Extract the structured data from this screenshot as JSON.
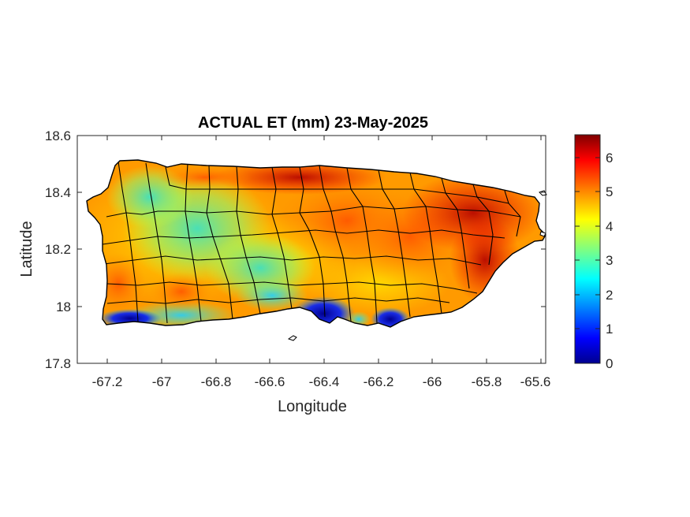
{
  "title": "ACTUAL ET (mm) 23-May-2025",
  "xlabel": "Longitude",
  "ylabel": "Latitude",
  "x_ticks": [
    "-67.2",
    "-67",
    "-66.8",
    "-66.6",
    "-66.4",
    "-66.2",
    "-66",
    "-65.8",
    "-65.6"
  ],
  "y_ticks": [
    "18.6",
    "18.4",
    "18.2",
    "18",
    "17.8"
  ],
  "colorbar_ticks": [
    "6",
    "5",
    "4",
    "3",
    "2",
    "1",
    "0"
  ],
  "map": {
    "region": "Puerto Rico",
    "variable": "Actual evapotranspiration",
    "units": "mm",
    "date": "23-May-2025",
    "colormap": "jet",
    "color_range": [
      0,
      6.6
    ],
    "x_range": [
      -67.3,
      -65.6
    ],
    "y_range": [
      17.8,
      18.6
    ],
    "boundaries": "municipality outlines",
    "colormap_stops": [
      "#00008f",
      "#0000ff",
      "#0080ff",
      "#00ffff",
      "#80ff80",
      "#ffff00",
      "#ff8000",
      "#ff0000",
      "#800000"
    ]
  }
}
